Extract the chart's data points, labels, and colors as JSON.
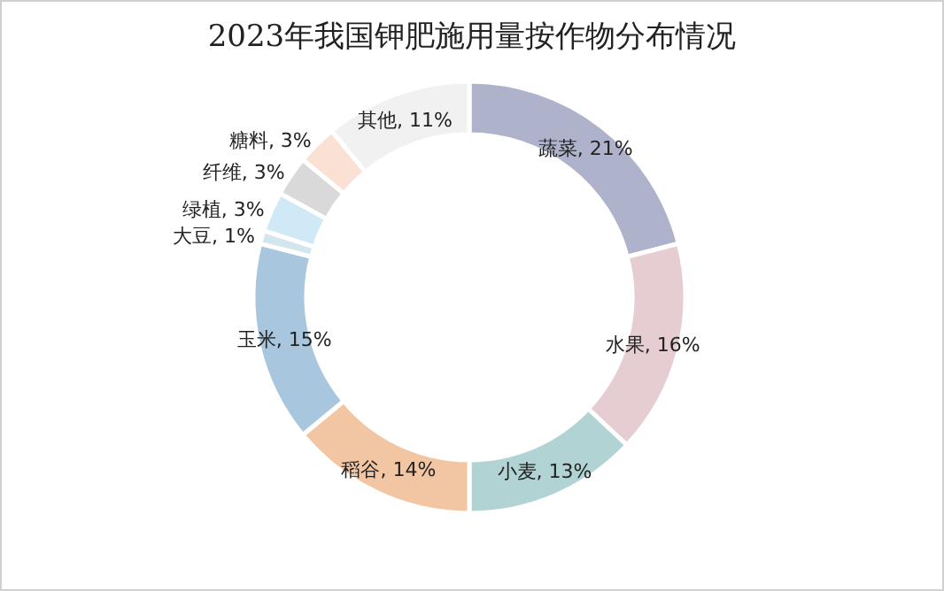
{
  "chart_data": {
    "type": "donut",
    "title": "2023年我国钾肥施用量按作物分布情况",
    "categories": [
      "蔬菜",
      "水果",
      "小麦",
      "稻谷",
      "玉米",
      "大豆",
      "绿植",
      "纤维",
      "糖料",
      "其他"
    ],
    "values": [
      21,
      16,
      13,
      14,
      15,
      1,
      3,
      3,
      3,
      11
    ],
    "value_labels": [
      "21%",
      "16%",
      "13%",
      "14%",
      "15%",
      "1%",
      "3%",
      "3%",
      "3%",
      "11%"
    ],
    "colors": [
      "#aeb2cb",
      "#e5cdd2",
      "#b2d3d3",
      "#f3c6a3",
      "#a8c6dd",
      "#d3e6ee",
      "#cfe9f7",
      "#d9d9d9",
      "#fbe1d3",
      "#f1f1f1"
    ]
  }
}
